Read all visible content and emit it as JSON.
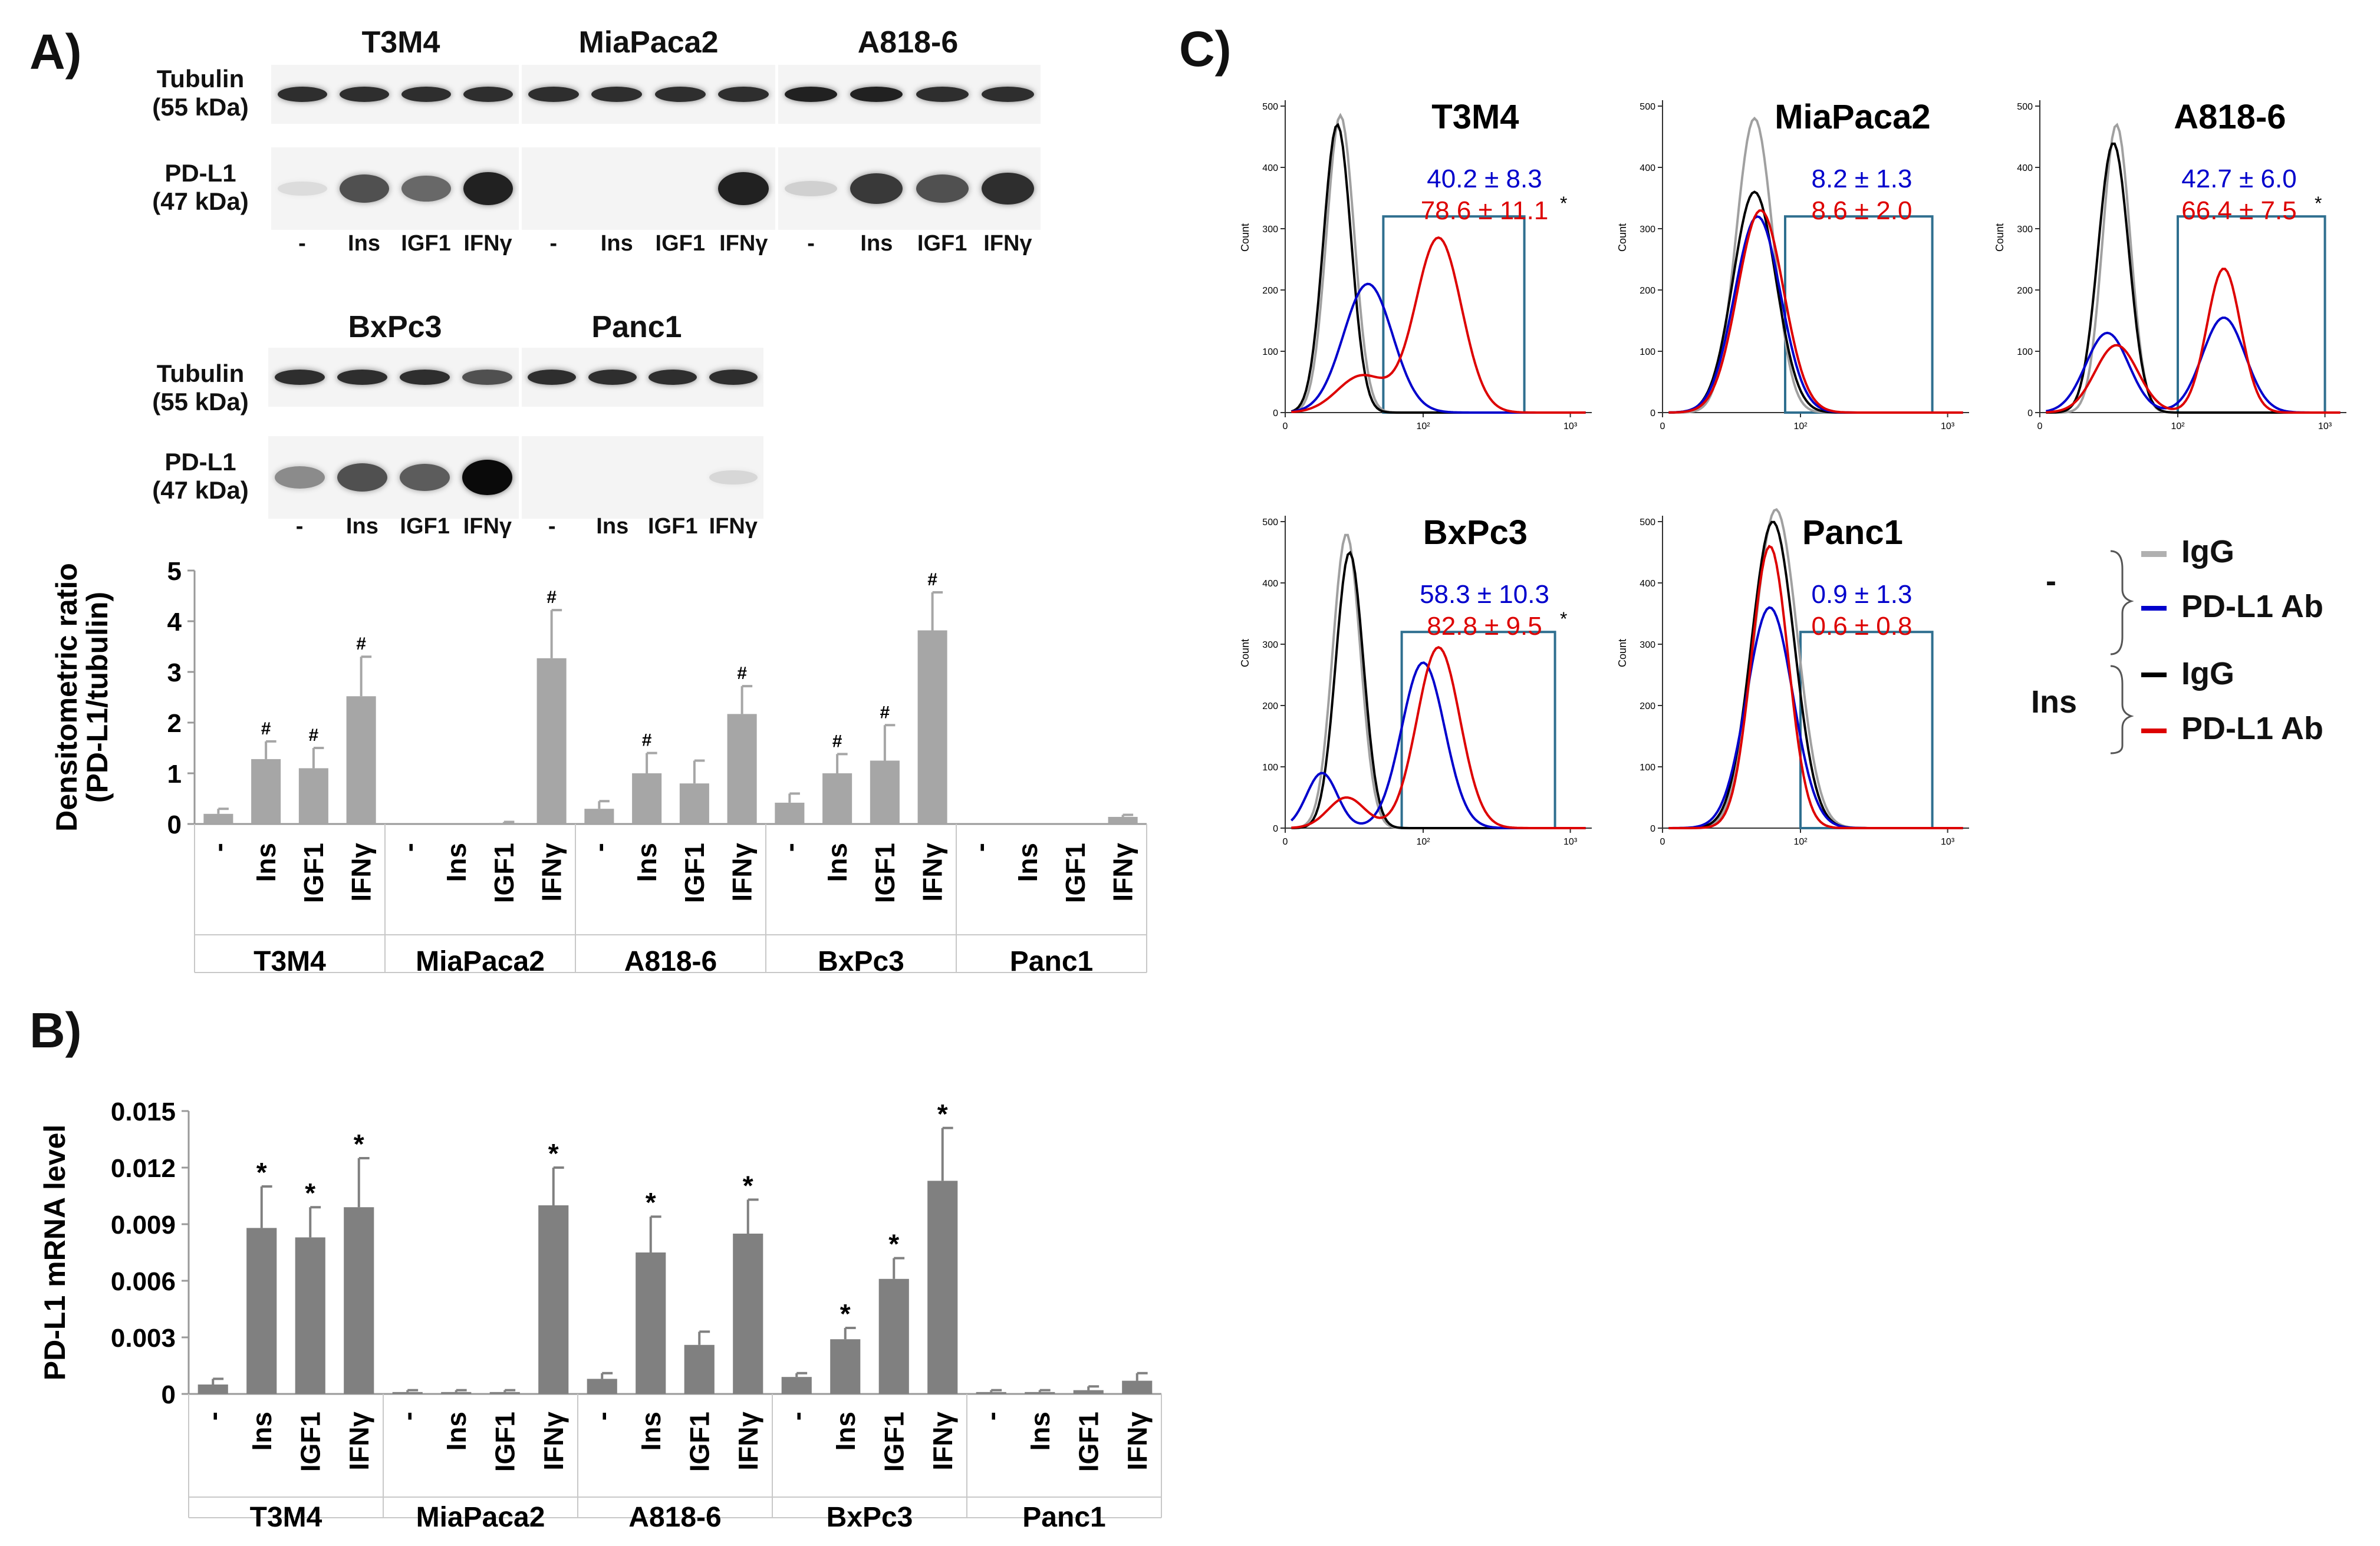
{
  "panel_a": {
    "letter": "A)",
    "western": {
      "row1_cells": [
        "T3M4",
        "MiaPaca2",
        "A818-6"
      ],
      "row2_cells": [
        "BxPc3",
        "Panc1"
      ],
      "tubulin_label": "Tubulin",
      "tubulin_kda": "(55 kDa)",
      "pdl1_label": "PD-L1",
      "pdl1_kda": "(47 kDa)",
      "lanes": [
        "-",
        "Ins",
        "IGF1",
        "IFNγ"
      ],
      "tubulin_intensity": {
        "T3M4": [
          0.85,
          0.85,
          0.85,
          0.85
        ],
        "MiaPaca2": [
          0.85,
          0.85,
          0.85,
          0.85
        ],
        "A818-6": [
          0.9,
          0.9,
          0.85,
          0.85
        ],
        "BxPc3": [
          0.85,
          0.85,
          0.85,
          0.7
        ],
        "Panc1": [
          0.85,
          0.85,
          0.85,
          0.85
        ]
      },
      "pdl1_intensity": {
        "T3M4": [
          0.1,
          0.7,
          0.6,
          0.9
        ],
        "MiaPaca2": [
          0,
          0,
          0,
          0.9
        ],
        "A818-6": [
          0.15,
          0.8,
          0.7,
          0.85
        ],
        "BxPc3": [
          0.45,
          0.7,
          0.65,
          1.0
        ],
        "Panc1": [
          0,
          0,
          0,
          0.12
        ]
      }
    },
    "densitometry": {
      "ylabel_line1": "Densitometric ratio",
      "ylabel_line2": "(PD-L1/tubulin)",
      "marker": "#"
    }
  },
  "panel_b": {
    "letter": "B)",
    "ylabel": "PD-L1 mRNA level",
    "marker": "*"
  },
  "panel_c": {
    "letter": "C)",
    "axis_label": "Count",
    "legend": {
      "group1": "-",
      "group2": "Ins",
      "igg": "IgG",
      "pdl1ab": "PD-L1 Ab"
    },
    "colors": {
      "control": "#0000cc",
      "insulin": "#dd0000"
    }
  },
  "chart_data": [
    {
      "type": "bar",
      "title": "Densitometric ratio (PD-L1/tubulin)",
      "ylabel": "Densitometric ratio (PD-L1/tubulin)",
      "ylim": [
        0,
        5
      ],
      "yticks": [
        "0",
        "1",
        "2",
        "3",
        "4",
        "5"
      ],
      "groups": [
        "T3M4",
        "MiaPaca2",
        "A818-6",
        "BxPc3",
        "Panc1"
      ],
      "categories": [
        "-",
        "Ins",
        "IGF1",
        "IFNγ"
      ],
      "values": [
        [
          0.2,
          1.28,
          1.1,
          2.52
        ],
        [
          0,
          0,
          0.02,
          3.27
        ],
        [
          0.3,
          1.0,
          0.8,
          2.17
        ],
        [
          0.42,
          1.0,
          1.25,
          3.82
        ],
        [
          0,
          0,
          0,
          0.14
        ]
      ],
      "errors": [
        [
          0.1,
          0.35,
          0.4,
          0.78
        ],
        [
          0,
          0,
          0.02,
          0.95
        ],
        [
          0.15,
          0.4,
          0.45,
          0.55
        ],
        [
          0.18,
          0.38,
          0.7,
          0.75
        ],
        [
          0,
          0,
          0,
          0.04
        ]
      ],
      "marks": [
        [
          "",
          "#",
          "#",
          "#"
        ],
        [
          "",
          "",
          "",
          "#"
        ],
        [
          "",
          "#",
          "",
          "#"
        ],
        [
          "",
          "#",
          "#",
          "#"
        ],
        [
          "",
          "",
          "",
          ""
        ]
      ],
      "color": "#a6a6a6"
    },
    {
      "type": "bar",
      "title": "PD-L1 mRNA level",
      "ylabel": "PD-L1 mRNA level",
      "ylim": [
        0,
        0.015
      ],
      "yticks": [
        "0",
        "0.003",
        "0.006",
        "0.009",
        "0.012",
        "0.015"
      ],
      "groups": [
        "T3M4",
        "MiaPaca2",
        "A818-6",
        "BxPc3",
        "Panc1"
      ],
      "categories": [
        "-",
        "Ins",
        "IGF1",
        "IFNγ"
      ],
      "values": [
        [
          0.0005,
          0.0088,
          0.0083,
          0.0099
        ],
        [
          0.0001,
          0.0001,
          0.0001,
          0.01
        ],
        [
          0.0008,
          0.0075,
          0.0026,
          0.0085
        ],
        [
          0.0009,
          0.0029,
          0.0061,
          0.0113
        ],
        [
          0.0001,
          0.0001,
          0.0002,
          0.0007
        ]
      ],
      "errors": [
        [
          0.0003,
          0.0022,
          0.0016,
          0.0026
        ],
        [
          0.0001,
          0.0001,
          0.0001,
          0.002
        ],
        [
          0.0003,
          0.0019,
          0.0007,
          0.0018
        ],
        [
          0.0002,
          0.0006,
          0.0011,
          0.0028
        ],
        [
          0.0001,
          0.0001,
          0.0002,
          0.0004
        ]
      ],
      "marks": [
        [
          "",
          "*",
          "*",
          "*"
        ],
        [
          "",
          "",
          "",
          "*"
        ],
        [
          "",
          "*",
          "",
          "*"
        ],
        [
          "",
          "*",
          "*",
          "*"
        ],
        [
          "",
          "",
          "",
          ""
        ]
      ],
      "color": "#808080"
    },
    {
      "type": "line",
      "subtype": "flow-cytometry-histograms",
      "ylabel": "Count",
      "ylim": [
        0,
        500
      ],
      "yticks": [
        "0",
        "100",
        "200",
        "300",
        "400",
        "500"
      ],
      "xticks": [
        "0",
        "10²",
        "10³"
      ],
      "panels": [
        {
          "name": "T3M4",
          "ctrl_value": "40.2 ±  8.3",
          "ins_value": "78.6 ± 11.1",
          "sig": "*",
          "gate": [
            0.32,
            0.78
          ],
          "peaks": {
            "igg": [
              [
                0.18,
                0.045,
                485
              ]
            ],
            "igg_ins": [
              [
                0.17,
                0.045,
                470
              ]
            ],
            "ctrl_ab": [
              [
                0.27,
                0.08,
                210
              ]
            ],
            "ins_ab": [
              [
                0.5,
                0.075,
                285
              ],
              [
                0.25,
                0.08,
                60
              ]
            ]
          }
        },
        {
          "name": "MiaPaca2",
          "ctrl_value": "8.2 ± 1.3",
          "ins_value": "8.6 ± 2.0",
          "sig": "",
          "gate": [
            0.4,
            0.88
          ],
          "peaks": {
            "igg": [
              [
                0.3,
                0.06,
                480
              ]
            ],
            "igg_ins": [
              [
                0.3,
                0.07,
                360
              ]
            ],
            "ctrl_ab": [
              [
                0.31,
                0.075,
                320
              ]
            ],
            "ins_ab": [
              [
                0.32,
                0.075,
                330
              ]
            ]
          }
        },
        {
          "name": "A818-6",
          "ctrl_value": "42.7 ±  6.0",
          "ins_value": "66.4 ±  7.5",
          "sig": "*",
          "gate": [
            0.45,
            0.93
          ],
          "peaks": {
            "igg": [
              [
                0.25,
                0.045,
                470
              ]
            ],
            "igg_ins": [
              [
                0.24,
                0.05,
                440
              ]
            ],
            "ctrl_ab": [
              [
                0.22,
                0.07,
                130
              ],
              [
                0.6,
                0.07,
                155
              ]
            ],
            "ins_ab": [
              [
                0.25,
                0.07,
                110
              ],
              [
                0.6,
                0.055,
                235
              ]
            ]
          }
        },
        {
          "name": "BxPc3",
          "ctrl_value": "58.3 ± 10.3",
          "ins_value": "82.8 ±  9.5",
          "sig": "*",
          "gate": [
            0.38,
            0.88
          ],
          "peaks": {
            "igg": [
              [
                0.2,
                0.045,
                480
              ]
            ],
            "igg_ins": [
              [
                0.21,
                0.045,
                450
              ]
            ],
            "ctrl_ab": [
              [
                0.12,
                0.05,
                90
              ],
              [
                0.45,
                0.07,
                270
              ]
            ],
            "ins_ab": [
              [
                0.5,
                0.07,
                295
              ],
              [
                0.2,
                0.06,
                50
              ]
            ]
          }
        },
        {
          "name": "Panc1",
          "ctrl_value": "0.9 ± 1.3",
          "ins_value": "0.6 ± 0.8",
          "sig": "",
          "gate": [
            0.45,
            0.88
          ],
          "peaks": {
            "igg": [
              [
                0.37,
                0.07,
                520
              ]
            ],
            "igg_ins": [
              [
                0.36,
                0.07,
                500
              ]
            ],
            "ctrl_ab": [
              [
                0.35,
                0.075,
                360
              ]
            ],
            "ins_ab": [
              [
                0.35,
                0.06,
                460
              ]
            ]
          }
        }
      ]
    }
  ]
}
